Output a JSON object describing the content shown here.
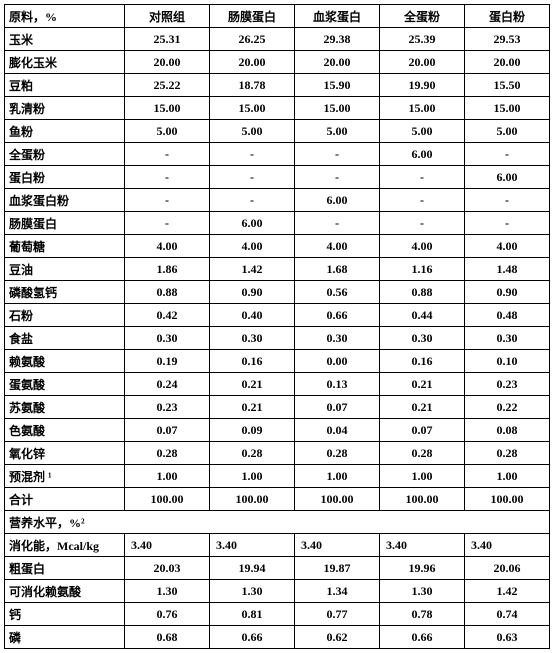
{
  "headers": [
    "原料，%",
    "对照组",
    "肠膜蛋白",
    "血浆蛋白",
    "全蛋粉",
    "蛋白粉"
  ],
  "rows": [
    {
      "label": "玉米",
      "vals": [
        "25.31",
        "26.25",
        "29.38",
        "25.39",
        "29.53"
      ]
    },
    {
      "label": "膨化玉米",
      "vals": [
        "20.00",
        "20.00",
        "20.00",
        "20.00",
        "20.00"
      ]
    },
    {
      "label": "豆粕",
      "vals": [
        "25.22",
        "18.78",
        "15.90",
        "19.90",
        "15.50"
      ]
    },
    {
      "label": "乳清粉",
      "vals": [
        "15.00",
        "15.00",
        "15.00",
        "15.00",
        "15.00"
      ]
    },
    {
      "label": "鱼粉",
      "vals": [
        "5.00",
        "5.00",
        "5.00",
        "5.00",
        "5.00"
      ]
    },
    {
      "label": "全蛋粉",
      "vals": [
        "-",
        "-",
        "-",
        "6.00",
        "-"
      ]
    },
    {
      "label": "蛋白粉",
      "vals": [
        "-",
        "-",
        "-",
        "-",
        "6.00"
      ]
    },
    {
      "label": "血浆蛋白粉",
      "vals": [
        "-",
        "-",
        "6.00",
        "-",
        "-"
      ]
    },
    {
      "label": "肠膜蛋白",
      "vals": [
        "-",
        "6.00",
        "-",
        "-",
        "-"
      ]
    },
    {
      "label": "葡萄糖",
      "vals": [
        "4.00",
        "4.00",
        "4.00",
        "4.00",
        "4.00"
      ]
    },
    {
      "label": "豆油",
      "vals": [
        "1.86",
        "1.42",
        "1.68",
        "1.16",
        "1.48"
      ]
    },
    {
      "label": "磷酸氢钙",
      "vals": [
        "0.88",
        "0.90",
        "0.56",
        "0.88",
        "0.90"
      ]
    },
    {
      "label": "石粉",
      "vals": [
        "0.42",
        "0.40",
        "0.66",
        "0.44",
        "0.48"
      ]
    },
    {
      "label": "食盐",
      "vals": [
        "0.30",
        "0.30",
        "0.30",
        "0.30",
        "0.30"
      ]
    },
    {
      "label": "赖氨酸",
      "vals": [
        "0.19",
        "0.16",
        "0.00",
        "0.16",
        "0.10"
      ]
    },
    {
      "label": "蛋氨酸",
      "vals": [
        "0.24",
        "0.21",
        "0.13",
        "0.21",
        "0.23"
      ]
    },
    {
      "label": "苏氨酸",
      "vals": [
        "0.23",
        "0.21",
        "0.07",
        "0.21",
        "0.22"
      ]
    },
    {
      "label": "色氨酸",
      "vals": [
        "0.07",
        "0.09",
        "0.04",
        "0.07",
        "0.08"
      ]
    },
    {
      "label": "氧化锌",
      "vals": [
        "0.28",
        "0.28",
        "0.28",
        "0.28",
        "0.28"
      ]
    },
    {
      "label": "预混剂 ¹",
      "vals": [
        "1.00",
        "1.00",
        "1.00",
        "1.00",
        "1.00"
      ]
    },
    {
      "label": "合计",
      "vals": [
        "100.00",
        "100.00",
        "100.00",
        "100.00",
        "100.00"
      ]
    }
  ],
  "sectionLabel": "营养水平，%²",
  "nutri": [
    {
      "label": "消化能，Mcal/kg",
      "vals": [
        "3.40",
        "3.40",
        "3.40",
        "3.40",
        "3.40"
      ],
      "left": true
    },
    {
      "label": "粗蛋白",
      "vals": [
        "20.03",
        "19.94",
        "19.87",
        "19.96",
        "20.06"
      ]
    },
    {
      "label": "可消化赖氨酸",
      "vals": [
        "1.30",
        "1.30",
        "1.34",
        "1.30",
        "1.42"
      ]
    },
    {
      "label": "钙",
      "vals": [
        "0.76",
        "0.81",
        "0.77",
        "0.78",
        "0.74"
      ]
    },
    {
      "label": "磷",
      "vals": [
        "0.68",
        "0.66",
        "0.62",
        "0.66",
        "0.63"
      ]
    }
  ]
}
